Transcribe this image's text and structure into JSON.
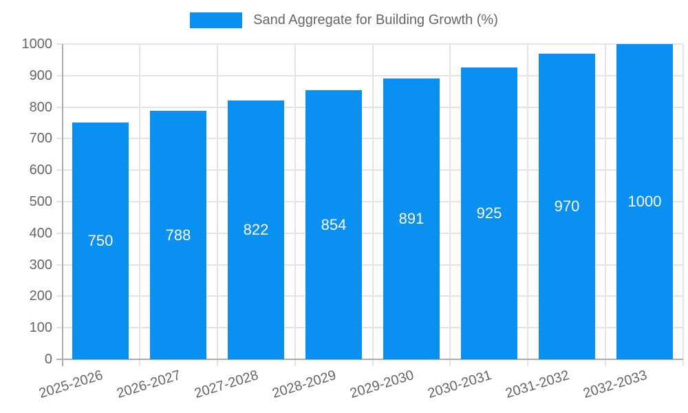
{
  "legend": {
    "label": "Sand Aggregate for Building Growth (%)"
  },
  "chart_data": {
    "type": "bar",
    "title": "",
    "categories": [
      "2025-2026",
      "2026-2027",
      "2027-2028",
      "2028-2029",
      "2029-2030",
      "2030-2031",
      "2031-2032",
      "2032-2033"
    ],
    "values": [
      750,
      788,
      822,
      854,
      891,
      925,
      970,
      1000
    ],
    "series_name": "Sand Aggregate for Building Growth (%)",
    "value_labels_shown_inside_bars": true,
    "xlabel": "",
    "ylabel": "",
    "ylim": [
      0,
      1000
    ],
    "ytick_step": 100,
    "ytick_labels": [
      "0",
      "100",
      "200",
      "300",
      "400",
      "500",
      "600",
      "700",
      "800",
      "900",
      "1000"
    ],
    "grid": true,
    "legend_position": "top-center",
    "colors": {
      "bar": "#0a90f0",
      "value_label": "#ffffff",
      "grid_line": "#e3e3e3",
      "axis_line": "#ababab",
      "tick_text": "#666666",
      "legend_text": "#666666",
      "background": "#ffffff"
    }
  }
}
